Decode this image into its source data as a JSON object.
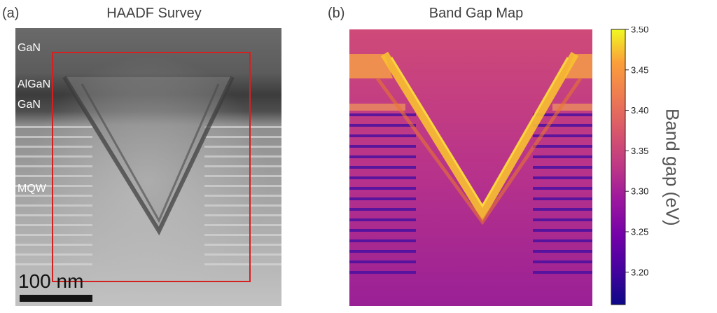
{
  "panel_a": {
    "label": "(a)",
    "title": "HAADF Survey",
    "layers": [
      "GaN",
      "AlGaN",
      "GaN",
      "MQW"
    ],
    "scale_bar": "100 nm",
    "roi_color": "#d42020"
  },
  "panel_b": {
    "label": "(b)",
    "title": "Band Gap Map",
    "colormap": "plasma"
  },
  "colorbar": {
    "label": "Band gap (eV)",
    "ticks": [
      "3.50",
      "3.45",
      "3.40",
      "3.35",
      "3.30",
      "3.25",
      "3.20"
    ],
    "range": [
      3.16,
      3.5
    ]
  }
}
